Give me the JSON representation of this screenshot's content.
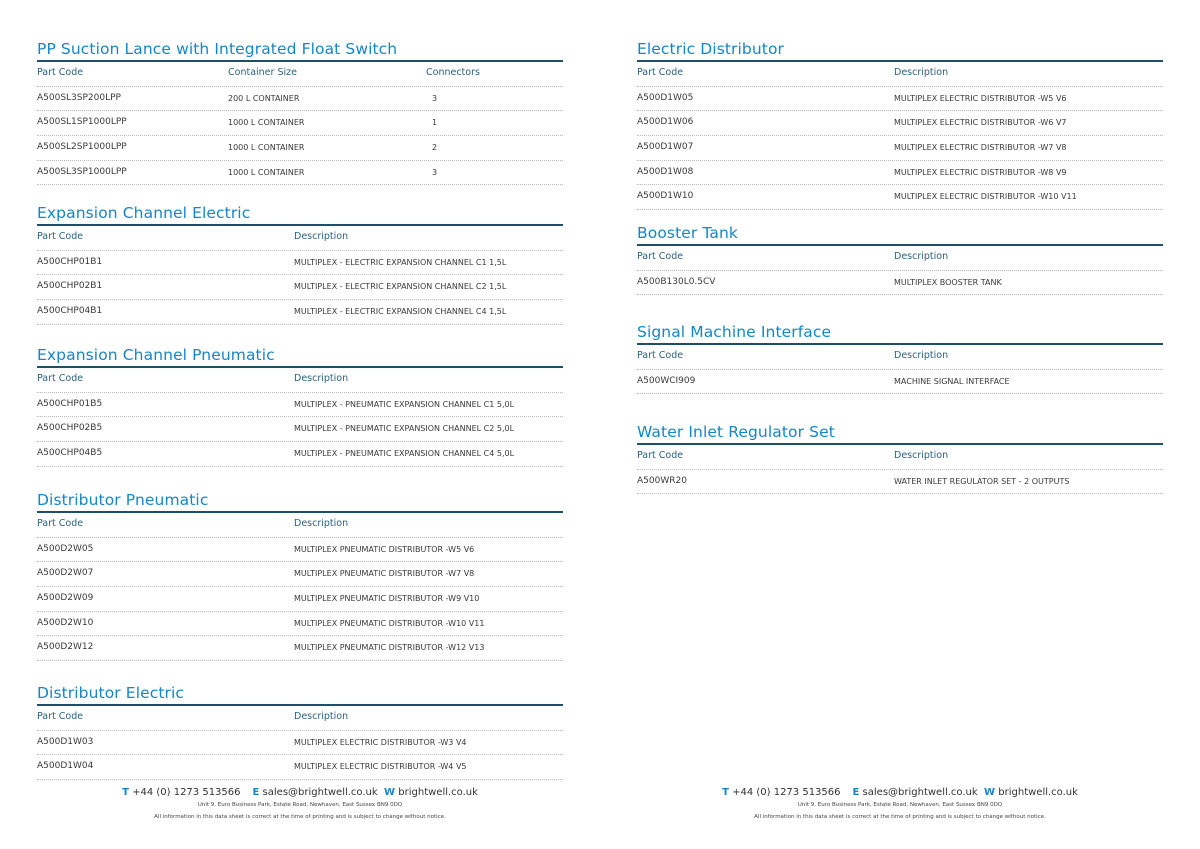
{
  "sections": [
    {
      "title": "PP Suction Lance with Integrated Float Switch",
      "columns": [
        "Part Code",
        "Container Size",
        "Connectors"
      ],
      "rows": [
        [
          "A500SL3SP200LPP",
          "200 L CONTAINER",
          "3"
        ],
        [
          "A500SL1SP1000LPP",
          "1000 L CONTAINER",
          "1"
        ],
        [
          "A500SL2SP1000LPP",
          "1000 L CONTAINER",
          "2"
        ],
        [
          "A500SL3SP1000LPP",
          "1000 L CONTAINER",
          "3"
        ]
      ]
    },
    {
      "title": "Expansion Channel Electric",
      "columns": [
        "Part Code",
        "Description"
      ],
      "rows": [
        [
          "A500CHP01B1",
          "MULTIPLEX - ELECTRIC EXPANSION CHANNEL C1 1,5L"
        ],
        [
          "A500CHP02B1",
          "MULTIPLEX - ELECTRIC EXPANSION CHANNEL C2 1,5L"
        ],
        [
          "A500CHP04B1",
          "MULTIPLEX - ELECTRIC EXPANSION CHANNEL C4 1,5L"
        ]
      ]
    },
    {
      "title": "Expansion Channel Pneumatic",
      "columns": [
        "Part Code",
        "Description"
      ],
      "rows": [
        [
          "A500CHP01B5",
          "MULTIPLEX - PNEUMATIC EXPANSION CHANNEL C1 5,0L"
        ],
        [
          "A500CHP02B5",
          "MULTIPLEX - PNEUMATIC EXPANSION CHANNEL C2 5,0L"
        ],
        [
          "A500CHP04B5",
          "MULTIPLEX - PNEUMATIC EXPANSION CHANNEL C4 5,0L"
        ]
      ]
    },
    {
      "title": "Distributor Pneumatic",
      "columns": [
        "Part Code",
        "Description"
      ],
      "rows": [
        [
          "A500D2W05",
          "MULTIPLEX PNEUMATIC DISTRIBUTOR -W5 V6"
        ],
        [
          "A500D2W07",
          "MULTIPLEX PNEUMATIC DISTRIBUTOR -W7 V8"
        ],
        [
          "A500D2W09",
          "MULTIPLEX PNEUMATIC DISTRIBUTOR -W9 V10"
        ],
        [
          "A500D2W10",
          "MULTIPLEX PNEUMATIC DISTRIBUTOR -W10 V11"
        ],
        [
          "A500D2W12",
          "MULTIPLEX PNEUMATIC DISTRIBUTOR -W12 V13"
        ]
      ]
    },
    {
      "title": "Distributor Electric",
      "columns": [
        "Part Code",
        "Description"
      ],
      "rows": [
        [
          "A500D1W03",
          "MULTIPLEX ELECTRIC DISTRIBUTOR -W3 V4"
        ],
        [
          "A500D1W04",
          "MULTIPLEX ELECTRIC DISTRIBUTOR -W4 V5"
        ]
      ]
    },
    {
      "title": "Electric Distributor",
      "columns": [
        "Part Code",
        "Description"
      ],
      "rows": [
        [
          "A500D1W05",
          "MULTIPLEX ELECTRIC DISTRIBUTOR -W5 V6"
        ],
        [
          "A500D1W06",
          "MULTIPLEX ELECTRIC DISTRIBUTOR -W6 V7"
        ],
        [
          "A500D1W07",
          "MULTIPLEX ELECTRIC DISTRIBUTOR -W7 V8"
        ],
        [
          "A500D1W08",
          "MULTIPLEX ELECTRIC DISTRIBUTOR -W8 V9"
        ],
        [
          "A500D1W10",
          "MULTIPLEX ELECTRIC DISTRIBUTOR -W10 V11"
        ]
      ]
    },
    {
      "title": "Booster Tank",
      "columns": [
        "Part Code",
        "Description"
      ],
      "rows": [
        [
          "A500B130L0.5CV",
          "MULTIPLEX BOOSTER TANK"
        ]
      ]
    },
    {
      "title": "Signal Machine Interface",
      "columns": [
        "Part Code",
        "Description"
      ],
      "rows": [
        [
          "A500WCI909",
          "MACHINE SIGNAL INTERFACE"
        ]
      ]
    },
    {
      "title": "Water Inlet Regulator Set",
      "columns": [
        "Part Code",
        "Description"
      ],
      "rows": [
        [
          "A500WR20",
          "WATER INLET REGULATOR SET - 2 OUTPUTS"
        ]
      ]
    }
  ],
  "footer": {
    "t_label": "T",
    "phone": "+44 (0) 1273 513566",
    "e_label": "E",
    "email": "sales@brightwell.co.uk",
    "w_label": "W",
    "web": "brightwell.co.uk",
    "address": "Unit 9, Euro Business Park, Estate Road, Newhaven, East Sussex BN9 0DQ",
    "disclaimer": "All information in this data sheet is correct at the time of printing and is subject to change without notice."
  },
  "colors": {
    "title": "#1586c8",
    "rule": "#1d4f68",
    "header_text": "#2b6280"
  }
}
